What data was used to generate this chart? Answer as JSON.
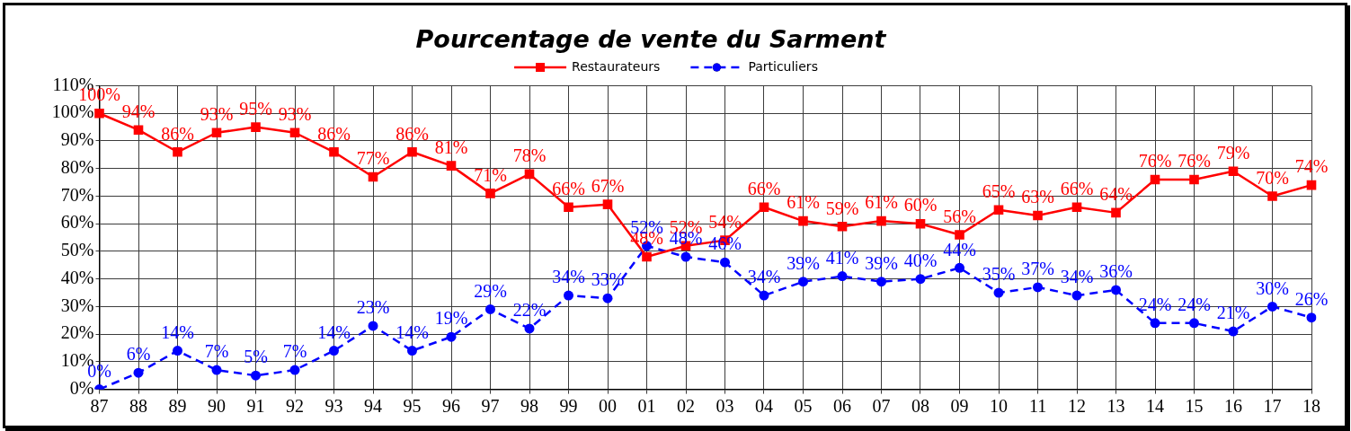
{
  "chart_data": {
    "type": "line",
    "title": "Pourcentage de vente du Sarment",
    "categories": [
      "87",
      "88",
      "89",
      "90",
      "91",
      "92",
      "93",
      "94",
      "95",
      "96",
      "97",
      "98",
      "99",
      "00",
      "01",
      "02",
      "03",
      "04",
      "05",
      "06",
      "07",
      "08",
      "09",
      "10",
      "11",
      "12",
      "13",
      "14",
      "15",
      "16",
      "17",
      "18"
    ],
    "series": [
      {
        "name": "Restaurateurs",
        "color": "#ff0000",
        "marker": "square",
        "line_style": "solid",
        "values": [
          100,
          94,
          86,
          93,
          95,
          93,
          86,
          77,
          86,
          81,
          71,
          78,
          66,
          67,
          48,
          52,
          54,
          66,
          61,
          59,
          61,
          60,
          56,
          65,
          63,
          66,
          64,
          76,
          76,
          79,
          70,
          74
        ],
        "value_labels": [
          "100%",
          "94%",
          "86%",
          "93%",
          "95%",
          "93%",
          "86%",
          "77%",
          "86%",
          "81%",
          "71%",
          "78%",
          "66%",
          "67%",
          "48%",
          "52%",
          "54%",
          "66%",
          "61%",
          "59%",
          "61%",
          "60%",
          "56%",
          "65%",
          "63%",
          "66%",
          "64%",
          "76%",
          "76%",
          "79%",
          "70%",
          "74%"
        ]
      },
      {
        "name": "Particuliers",
        "color": "#0000ff",
        "marker": "circle",
        "line_style": "dashed",
        "values": [
          0,
          6,
          14,
          7,
          5,
          7,
          14,
          23,
          14,
          19,
          29,
          22,
          34,
          33,
          52,
          48,
          46,
          34,
          39,
          41,
          39,
          40,
          44,
          35,
          37,
          34,
          36,
          24,
          24,
          21,
          30,
          26
        ],
        "value_labels": [
          "0%",
          "6%",
          "14%",
          "7%",
          "5%",
          "7%",
          "14%",
          "23%",
          "14%",
          "19%",
          "29%",
          "22%",
          "34%",
          "33%",
          "52%",
          "48%",
          "46%",
          "34%",
          "39%",
          "41%",
          "39%",
          "40%",
          "44%",
          "35%",
          "37%",
          "34%",
          "36%",
          "24%",
          "24%",
          "21%",
          "30%",
          "26%"
        ]
      }
    ],
    "ylim": [
      0,
      110
    ],
    "yticks": [
      {
        "value": 0,
        "label": "0%"
      },
      {
        "value": 10,
        "label": "10%"
      },
      {
        "value": 20,
        "label": "20%"
      },
      {
        "value": 30,
        "label": "30%"
      },
      {
        "value": 40,
        "label": "40%"
      },
      {
        "value": 50,
        "label": "50%"
      },
      {
        "value": 60,
        "label": "60%"
      },
      {
        "value": 70,
        "label": "70%"
      },
      {
        "value": 80,
        "label": "80%"
      },
      {
        "value": 90,
        "label": "90%"
      },
      {
        "value": 100,
        "label": "100%"
      },
      {
        "value": 110,
        "label": "110%"
      }
    ],
    "grid": true,
    "legend": "top"
  }
}
